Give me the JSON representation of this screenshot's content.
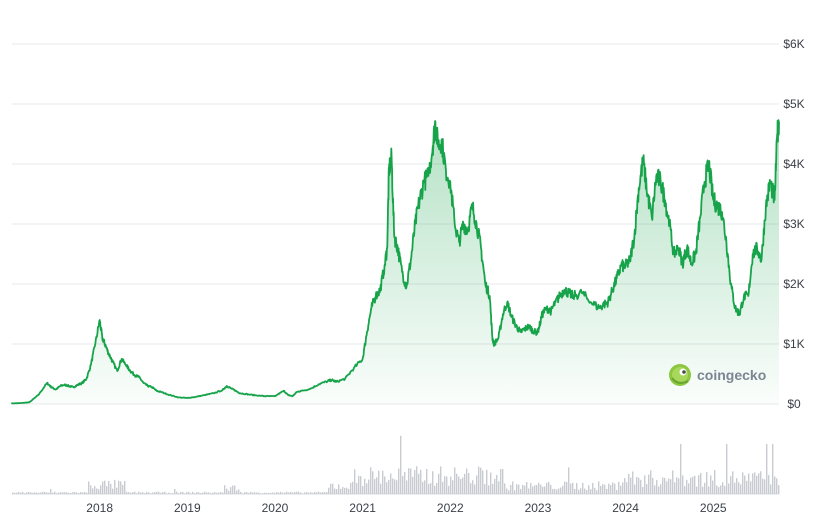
{
  "chart_data": {
    "type": "area",
    "x_unit": "year",
    "y_unit": "USD",
    "ylim": [
      0,
      6000
    ],
    "yticks": [
      {
        "value": 0,
        "label": "$0"
      },
      {
        "value": 1000,
        "label": "$1K"
      },
      {
        "value": 2000,
        "label": "$2K"
      },
      {
        "value": 3000,
        "label": "$3K"
      },
      {
        "value": 4000,
        "label": "$4K"
      },
      {
        "value": 5000,
        "label": "$5K"
      },
      {
        "value": 6000,
        "label": "$6K"
      }
    ],
    "xlim": [
      2017.0,
      2025.75
    ],
    "xticks": [
      {
        "value": 2018.0,
        "label": "2018"
      },
      {
        "value": 2019.0,
        "label": "2019"
      },
      {
        "value": 2020.0,
        "label": "2020"
      },
      {
        "value": 2021.0,
        "label": "2021"
      },
      {
        "value": 2022.0,
        "label": "2022"
      },
      {
        "value": 2023.0,
        "label": "2023"
      },
      {
        "value": 2024.0,
        "label": "2024"
      },
      {
        "value": 2025.0,
        "label": "2025"
      }
    ],
    "grid": true,
    "line_color": "#16a34a",
    "fill_color": "#16a34a",
    "volume_color": "#c8ccd2",
    "series": [
      {
        "x": [
          2017.0,
          2017.1,
          2017.2,
          2017.3,
          2017.4,
          2017.45,
          2017.5,
          2017.55,
          2017.6,
          2017.65,
          2017.7,
          2017.75,
          2017.8,
          2017.85,
          2017.9,
          2017.95,
          2018.0,
          2018.03,
          2018.06,
          2018.1,
          2018.15,
          2018.2,
          2018.25,
          2018.3,
          2018.35,
          2018.4,
          2018.45,
          2018.5,
          2018.55,
          2018.6,
          2018.65,
          2018.7,
          2018.8,
          2018.9,
          2019.0,
          2019.1,
          2019.2,
          2019.3,
          2019.4,
          2019.45,
          2019.5,
          2019.55,
          2019.6,
          2019.7,
          2019.8,
          2019.9,
          2020.0,
          2020.1,
          2020.15,
          2020.2,
          2020.25,
          2020.3,
          2020.4,
          2020.5,
          2020.6,
          2020.65,
          2020.7,
          2020.8,
          2020.9,
          2021.0,
          2021.05,
          2021.1,
          2021.15,
          2021.2,
          2021.25,
          2021.28,
          2021.3,
          2021.33,
          2021.36,
          2021.4,
          2021.45,
          2021.5,
          2021.55,
          2021.6,
          2021.65,
          2021.7,
          2021.75,
          2021.8,
          2021.83,
          2021.86,
          2021.9,
          2021.95,
          2022.0,
          2022.05,
          2022.1,
          2022.15,
          2022.2,
          2022.25,
          2022.3,
          2022.35,
          2022.4,
          2022.45,
          2022.48,
          2022.5,
          2022.55,
          2022.6,
          2022.65,
          2022.7,
          2022.75,
          2022.8,
          2022.85,
          2022.9,
          2022.95,
          2023.0,
          2023.05,
          2023.1,
          2023.15,
          2023.2,
          2023.25,
          2023.3,
          2023.35,
          2023.4,
          2023.5,
          2023.6,
          2023.7,
          2023.75,
          2023.8,
          2023.85,
          2023.9,
          2023.95,
          2024.0,
          2024.05,
          2024.1,
          2024.15,
          2024.2,
          2024.25,
          2024.3,
          2024.35,
          2024.4,
          2024.45,
          2024.5,
          2024.55,
          2024.6,
          2024.65,
          2024.7,
          2024.75,
          2024.8,
          2024.85,
          2024.9,
          2024.95,
          2025.0,
          2025.05,
          2025.1,
          2025.15,
          2025.2,
          2025.25,
          2025.3,
          2025.35,
          2025.4,
          2025.45,
          2025.5,
          2025.55,
          2025.6,
          2025.65,
          2025.7,
          2025.73,
          2025.75
        ],
        "y": [
          10,
          15,
          30,
          150,
          350,
          280,
          240,
          300,
          320,
          300,
          280,
          320,
          350,
          420,
          650,
          1000,
          1400,
          1100,
          1000,
          850,
          700,
          550,
          750,
          650,
          550,
          480,
          450,
          350,
          300,
          280,
          220,
          200,
          150,
          110,
          100,
          120,
          150,
          180,
          230,
          300,
          260,
          220,
          180,
          160,
          140,
          130,
          130,
          220,
          150,
          130,
          200,
          220,
          250,
          330,
          380,
          400,
          370,
          420,
          600,
          750,
          1200,
          1600,
          1800,
          1900,
          2300,
          2600,
          3900,
          4100,
          2800,
          2600,
          2200,
          1950,
          2400,
          3000,
          3400,
          3700,
          3800,
          4300,
          4700,
          4300,
          4400,
          3900,
          3700,
          3000,
          2700,
          3000,
          2900,
          3300,
          3000,
          2600,
          2000,
          1800,
          1100,
          1000,
          1100,
          1500,
          1700,
          1450,
          1300,
          1200,
          1250,
          1300,
          1200,
          1200,
          1500,
          1600,
          1550,
          1700,
          1800,
          1900,
          1850,
          1800,
          1850,
          1700,
          1600,
          1650,
          1700,
          1900,
          2100,
          2300,
          2300,
          2400,
          2800,
          3600,
          4050,
          3500,
          3100,
          3800,
          3700,
          3400,
          3000,
          2500,
          2600,
          2350,
          2600,
          2350,
          2500,
          3100,
          3700,
          4000,
          3400,
          3300,
          3200,
          2700,
          2000,
          1600,
          1500,
          1800,
          1800,
          2500,
          2600,
          2400,
          3300,
          3700,
          3400,
          4500,
          4700
        ]
      }
    ],
    "watermark": "coingecko"
  }
}
